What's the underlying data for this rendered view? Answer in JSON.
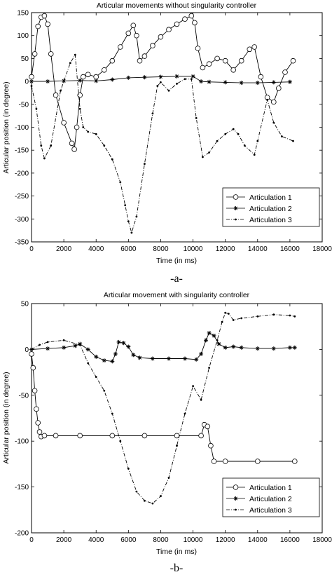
{
  "chart_data": [
    {
      "type": "line",
      "title": "Articular movements without singularity controller",
      "xlabel": "Time (in ms)",
      "ylabel": "Articular position (in degree)",
      "caption": "-a-",
      "xlim": [
        0,
        18000
      ],
      "ylim": [
        -350,
        150
      ],
      "xticks": [
        0,
        2000,
        4000,
        6000,
        8000,
        10000,
        12000,
        14000,
        16000,
        18000
      ],
      "yticks": [
        150,
        100,
        50,
        0,
        -50,
        -100,
        -150,
        -200,
        -250,
        -300,
        -350
      ],
      "grid": false,
      "legend_position": "bottom-right",
      "series": [
        {
          "name": "Articulation 1",
          "marker": "circle",
          "line": "solid",
          "x": [
            0,
            200,
            400,
            600,
            800,
            1000,
            1200,
            1500,
            2000,
            2500,
            2650,
            2800,
            3000,
            3200,
            3500,
            4000,
            4500,
            5000,
            5500,
            6000,
            6300,
            6500,
            6700,
            7000,
            7500,
            8000,
            8500,
            9000,
            9500,
            9900,
            10100,
            10300,
            10600,
            11000,
            11500,
            12000,
            12500,
            13000,
            13500,
            13800,
            14200,
            14600,
            15000,
            15300,
            15700,
            16200
          ],
          "y": [
            10,
            60,
            120,
            140,
            143,
            125,
            60,
            -30,
            -90,
            -135,
            -148,
            -100,
            -30,
            10,
            15,
            10,
            25,
            45,
            75,
            105,
            122,
            100,
            45,
            55,
            78,
            97,
            113,
            125,
            136,
            143,
            128,
            72,
            30,
            38,
            50,
            45,
            25,
            45,
            70,
            75,
            10,
            -35,
            -45,
            -15,
            20,
            45
          ]
        },
        {
          "name": "Articulation 2",
          "marker": "star",
          "line": "solid",
          "x": [
            0,
            1000,
            2000,
            3000,
            4000,
            5000,
            6000,
            7000,
            8000,
            9000,
            10000,
            10500,
            11000,
            12000,
            13000,
            14000,
            15000,
            16000
          ],
          "y": [
            0,
            0,
            1,
            2,
            1,
            4,
            8,
            9,
            10,
            11,
            11,
            0,
            -1,
            -2,
            -3,
            -3,
            -2,
            -1
          ]
        },
        {
          "name": "Articulation 3",
          "marker": "dot",
          "line": "dashdot",
          "x": [
            0,
            300,
            600,
            800,
            1200,
            1800,
            2400,
            2700,
            3000,
            3200,
            3500,
            4000,
            4500,
            5000,
            5500,
            5800,
            6000,
            6200,
            6500,
            7000,
            7500,
            7800,
            8000,
            8500,
            9000,
            9500,
            9900,
            10200,
            10600,
            11000,
            11500,
            12000,
            12500,
            12800,
            13200,
            13800,
            14000,
            14600,
            15000,
            15500,
            16200
          ],
          "y": [
            -10,
            -60,
            -140,
            -168,
            -140,
            -20,
            40,
            58,
            -60,
            -100,
            -110,
            -115,
            -140,
            -170,
            -220,
            -270,
            -305,
            -330,
            -295,
            -180,
            -70,
            -10,
            -2,
            -20,
            -5,
            5,
            5,
            -80,
            -165,
            -155,
            -130,
            -115,
            -104,
            -115,
            -140,
            -160,
            -130,
            -40,
            -90,
            -120,
            -130
          ]
        }
      ]
    },
    {
      "type": "line",
      "title": "Articular movement with singularity controller",
      "xlabel": "Time (in ms)",
      "ylabel": "Articular position (in degree)",
      "caption": "-b-",
      "xlim": [
        0,
        18000
      ],
      "ylim": [
        -200,
        50
      ],
      "xticks": [
        0,
        2000,
        4000,
        6000,
        8000,
        10000,
        12000,
        14000,
        16000,
        18000
      ],
      "yticks": [
        50,
        0,
        -50,
        -100,
        -150,
        -200
      ],
      "grid": false,
      "legend_position": "bottom-right",
      "series": [
        {
          "name": "Articulation 1",
          "marker": "circle",
          "line": "solid",
          "x": [
            0,
            100,
            200,
            300,
            400,
            500,
            600,
            800,
            1500,
            3000,
            5000,
            7000,
            9000,
            10500,
            10700,
            10900,
            11100,
            11300,
            12000,
            14000,
            16300
          ],
          "y": [
            -5,
            -20,
            -45,
            -65,
            -80,
            -90,
            -95,
            -94,
            -94,
            -94,
            -94,
            -94,
            -94,
            -94,
            -82,
            -84,
            -105,
            -122,
            -122,
            -122,
            -122
          ]
        },
        {
          "name": "Articulation 2",
          "marker": "star",
          "line": "solid",
          "x": [
            0,
            1000,
            2000,
            2700,
            3000,
            3500,
            4000,
            4500,
            5000,
            5200,
            5400,
            5700,
            6000,
            6300,
            6700,
            7500,
            8500,
            9500,
            10200,
            10500,
            10800,
            11000,
            11300,
            11600,
            12000,
            12500,
            13000,
            14000,
            15000,
            16000,
            16300
          ],
          "y": [
            0,
            1,
            2,
            4,
            6,
            0,
            -8,
            -12,
            -13,
            -5,
            8,
            7,
            3,
            -6,
            -9,
            -10,
            -10,
            -10,
            -11,
            -5,
            10,
            18,
            15,
            6,
            2,
            3,
            2,
            1,
            1,
            2,
            2
          ]
        },
        {
          "name": "Articulation 3",
          "marker": "dot",
          "line": "dashdot",
          "x": [
            0,
            500,
            1000,
            2000,
            3000,
            3500,
            4000,
            4500,
            5000,
            5500,
            6000,
            6500,
            7000,
            7500,
            8000,
            8500,
            9000,
            9500,
            10000,
            10500,
            11000,
            11500,
            11800,
            12000,
            12200,
            12500,
            13000,
            14000,
            15000,
            16000,
            16300
          ],
          "y": [
            0,
            5,
            8,
            10,
            5,
            -15,
            -30,
            -45,
            -70,
            -100,
            -130,
            -155,
            -165,
            -168,
            -160,
            -140,
            -105,
            -70,
            -40,
            -55,
            -20,
            10,
            30,
            40,
            39,
            32,
            34,
            36,
            38,
            37,
            36
          ]
        }
      ]
    }
  ]
}
